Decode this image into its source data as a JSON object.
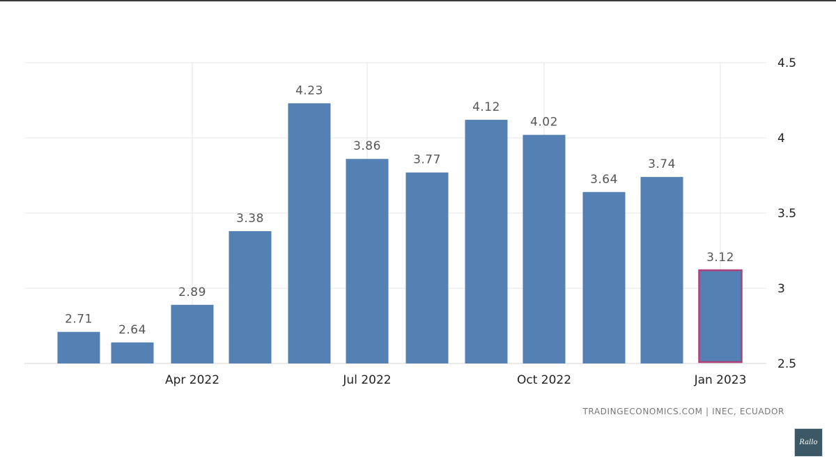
{
  "chart_data": {
    "type": "bar",
    "categories": [
      "Feb 2022",
      "Mar 2022",
      "Apr 2022",
      "May 2022",
      "Jun 2022",
      "Jul 2022",
      "Aug 2022",
      "Sep 2022",
      "Oct 2022",
      "Nov 2022",
      "Dec 2022",
      "Jan 2023"
    ],
    "values": [
      2.71,
      2.64,
      2.89,
      3.38,
      4.23,
      3.86,
      3.77,
      4.12,
      4.02,
      3.64,
      3.74,
      3.12
    ],
    "data_labels": [
      "2.71",
      "2.64",
      "2.89",
      "3.38",
      "4.23",
      "3.86",
      "3.77",
      "4.12",
      "4.02",
      "3.64",
      "3.74",
      "3.12"
    ],
    "highlighted_index": 11,
    "ylim": [
      2.5,
      4.5
    ],
    "y_ticks": [
      {
        "value": 2.5,
        "label": "2.5"
      },
      {
        "value": 3,
        "label": "3"
      },
      {
        "value": 3.5,
        "label": "3.5"
      },
      {
        "value": 4,
        "label": "4"
      },
      {
        "value": 4.5,
        "label": "4.5"
      }
    ],
    "x_ticks": [
      {
        "label": "Apr 2022",
        "category_index": 2
      },
      {
        "label": "Jul 2022",
        "category_index": 5
      },
      {
        "label": "Oct 2022",
        "category_index": 8
      },
      {
        "label": "Jan 2023",
        "category_index": 11
      }
    ],
    "y_axis_side": "right",
    "grid": true,
    "bar_color": "#5580b3",
    "highlight_border_color": "#b0407a",
    "title": "",
    "xlabel": "",
    "ylabel": ""
  },
  "source_text": "TRADINGECONOMICS.COM  |  INEC, ECUADOR",
  "logo_text": "Rallo"
}
